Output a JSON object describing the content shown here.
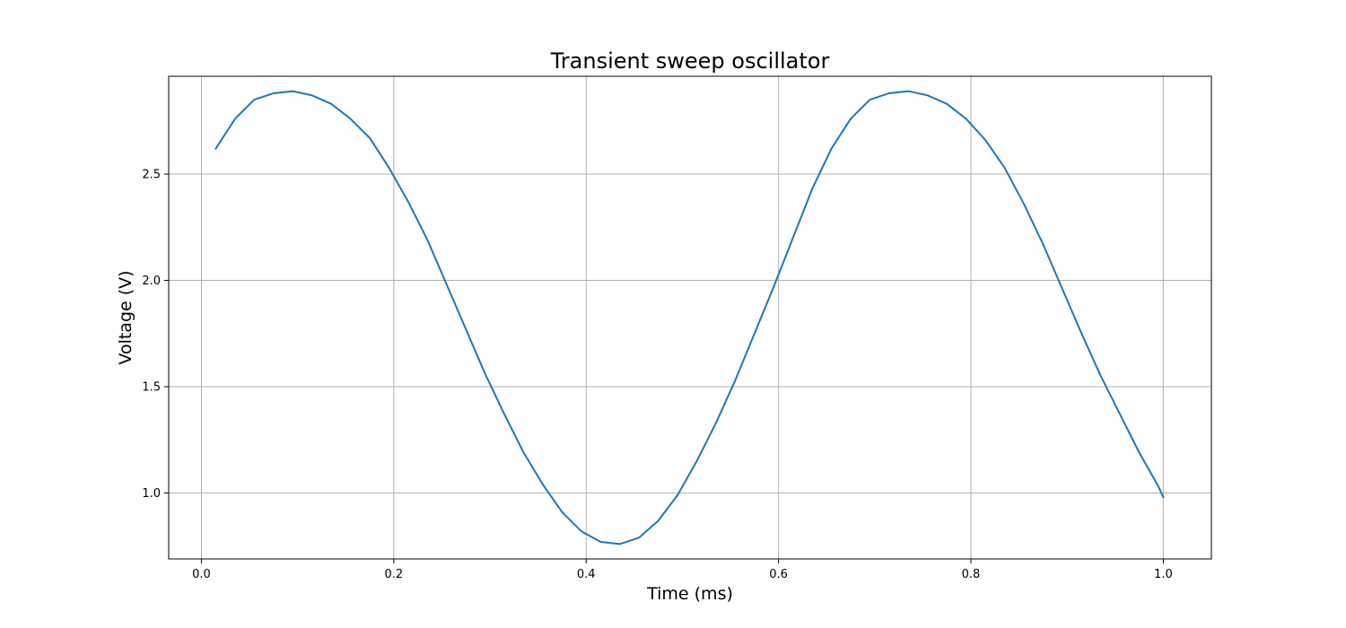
{
  "chart_data": {
    "type": "line",
    "title": "Transient sweep oscillator",
    "xlabel": "Time (ms)",
    "ylabel": "Voltage (V)",
    "xlim": [
      -0.034,
      1.05
    ],
    "ylim": [
      0.69,
      2.96
    ],
    "xticks": [
      0.0,
      0.2,
      0.4,
      0.6,
      0.8,
      1.0
    ],
    "xtick_labels": [
      "0.0",
      "0.2",
      "0.4",
      "0.6",
      "0.8",
      "1.0"
    ],
    "yticks": [
      1.0,
      1.5,
      2.0,
      2.5
    ],
    "ytick_labels": [
      "1.0",
      "1.5",
      "2.0",
      "2.5"
    ],
    "grid": true,
    "series": [
      {
        "color": "#1f77b4",
        "x": [
          0.015,
          0.035,
          0.055,
          0.075,
          0.095,
          0.115,
          0.135,
          0.155,
          0.175,
          0.195,
          0.215,
          0.235,
          0.255,
          0.275,
          0.295,
          0.315,
          0.335,
          0.355,
          0.375,
          0.395,
          0.415,
          0.435,
          0.455,
          0.475,
          0.495,
          0.515,
          0.535,
          0.555,
          0.575,
          0.595,
          0.615,
          0.635,
          0.655,
          0.675,
          0.695,
          0.715,
          0.735,
          0.755,
          0.775,
          0.795,
          0.815,
          0.835,
          0.855,
          0.875,
          0.895,
          0.915,
          0.935,
          0.955,
          0.975,
          0.995,
          1.0
        ],
        "y": [
          2.62,
          2.76,
          2.85,
          2.88,
          2.89,
          2.87,
          2.83,
          2.76,
          2.67,
          2.53,
          2.37,
          2.19,
          1.98,
          1.77,
          1.56,
          1.37,
          1.19,
          1.04,
          0.91,
          0.82,
          0.77,
          0.76,
          0.79,
          0.87,
          0.99,
          1.15,
          1.33,
          1.53,
          1.75,
          1.97,
          2.2,
          2.43,
          2.62,
          2.76,
          2.85,
          2.88,
          2.89,
          2.87,
          2.83,
          2.76,
          2.66,
          2.53,
          2.36,
          2.17,
          1.96,
          1.75,
          1.55,
          1.37,
          1.19,
          1.03,
          0.98
        ]
      }
    ]
  }
}
